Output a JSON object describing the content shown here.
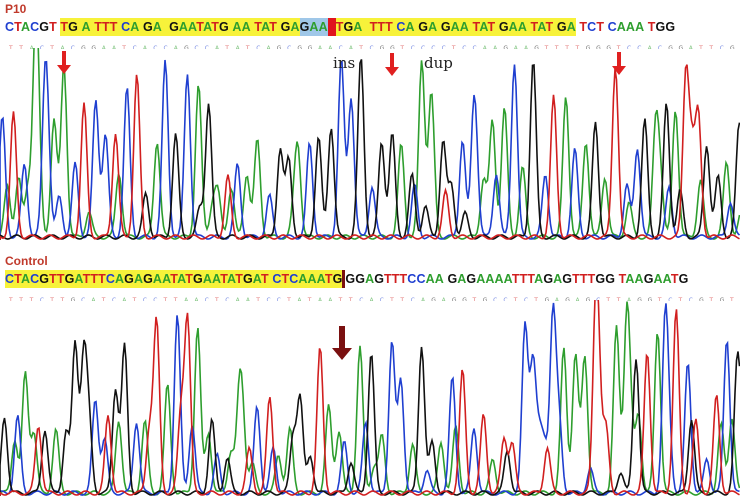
{
  "colors": {
    "A": "#2e9e2e",
    "C": "#1f3fd0",
    "G": "#111111",
    "T": "#d11f1f",
    "highlight_yellow": "#f7f23a",
    "highlight_blue": "#9fc7e8",
    "insert_red": "#e0141e",
    "arrow_red": "#e02020",
    "arrow_dark": "#7a1010"
  },
  "p10": {
    "label": "P10",
    "sequence": [
      {
        "t": "CTACGT",
        "hl": ""
      },
      {
        "t": " ",
        "hl": ""
      },
      {
        "t": "TG A TTT CA GA  GAATATG AA TAT GA",
        "hl": "yellow"
      },
      {
        "t": "GAA",
        "hl": "blue"
      },
      {
        "t": "|",
        "hl": "red"
      },
      {
        "t": "TGA  TTT CA GA GAA TAT GAA TAT GA",
        "hl": "yellow"
      },
      {
        "t": " TCT CAAA TGG",
        "hl": ""
      }
    ],
    "annotations": [
      "ins",
      "dup"
    ]
  },
  "control": {
    "label": "Control",
    "sequence": [
      {
        "t": "CTACGTTGATTTCAGAGAATATGAATATGAT CTCAAATG",
        "hl": "yellow"
      },
      {
        "t": "|",
        "hl": "darkred"
      },
      {
        "t": "GGAGTTTCCAA GAGAAAATTTAGAGTTTGG TAAGAATG",
        "hl": ""
      }
    ]
  }
}
